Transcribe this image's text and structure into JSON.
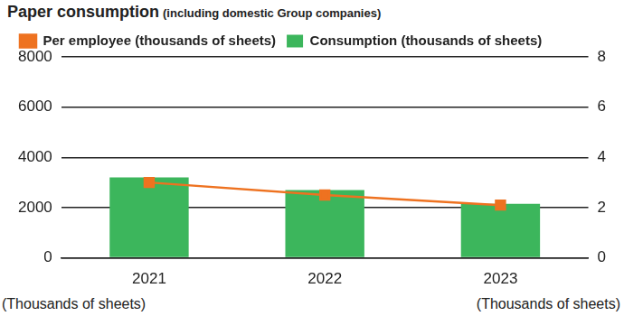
{
  "chart_data": {
    "type": "bar",
    "title": "Paper consumption",
    "subtitle": "(including domestic Group companies)",
    "categories": [
      "2021",
      "2022",
      "2023"
    ],
    "series": [
      {
        "name": "Consumption (thousands of sheets)",
        "type": "bar",
        "color": "#3cb65c",
        "values": [
          3200,
          2700,
          2150
        ]
      },
      {
        "name": "Per employee (thousands of sheets)",
        "type": "line",
        "color": "#ee7220",
        "marker": "square",
        "axis": "y2",
        "values": [
          3.0,
          2.5,
          2.1
        ]
      }
    ],
    "ylim": [
      0,
      8000
    ],
    "yticks": [
      0,
      2000,
      4000,
      6000,
      8000
    ],
    "y2lim": [
      0,
      8
    ],
    "y2ticks": [
      0,
      2,
      4,
      6,
      8
    ],
    "ylabel": "(Thousands of sheets)",
    "y2label": "(Thousands of sheets)",
    "grid": true,
    "legend": "top"
  }
}
